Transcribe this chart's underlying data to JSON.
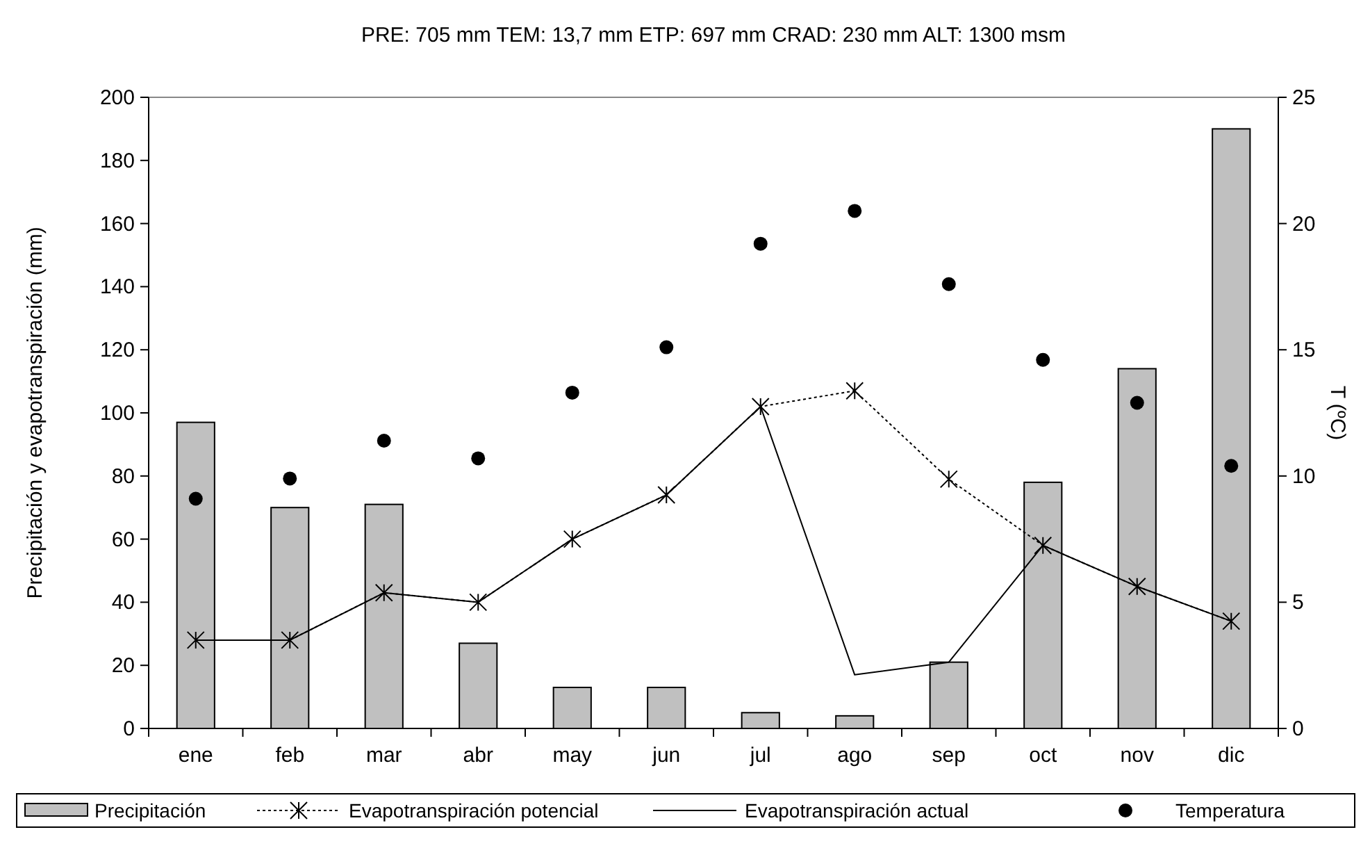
{
  "chart_data": {
    "type": "bar",
    "title": "PRE: 705 mm  TEM: 13,7 mm  ETP: 697 mm  CRAD: 230 mm  ALT: 1300 msm",
    "ylabel": "Precipitación y evapotranspiración (mm)",
    "y2label": "T (ºC)",
    "categories": [
      "ene",
      "feb",
      "mar",
      "abr",
      "may",
      "jun",
      "jul",
      "ago",
      "sep",
      "oct",
      "nov",
      "dic"
    ],
    "series": [
      {
        "name": "Precipitación",
        "color": "#c0c0c0",
        "values": [
          97,
          70,
          71,
          27,
          13,
          13,
          5,
          4,
          21,
          78,
          114,
          190
        ]
      },
      {
        "name": "Evapotranspiración potencial",
        "type": "line",
        "color": "#000000",
        "line_style": "dotted",
        "marker": "cross",
        "values": [
          28,
          28,
          43,
          40,
          60,
          74,
          102,
          107,
          79,
          58,
          45,
          34
        ]
      },
      {
        "name": "Evapotranspiración actual",
        "type": "line",
        "color": "#000000",
        "line_style": "solid",
        "marker": "none",
        "values": [
          28,
          28,
          43,
          40,
          60,
          74,
          102,
          17,
          21,
          58,
          45,
          34
        ]
      },
      {
        "name": "Temperatura",
        "type": "scatter",
        "axis": "y2",
        "color": "#000000",
        "marker": "circle",
        "values": [
          9.1,
          9.9,
          11.4,
          10.7,
          13.3,
          15.1,
          19.2,
          20.5,
          17.6,
          14.6,
          12.9,
          10.4
        ]
      }
    ],
    "ylim": [
      0,
      200
    ],
    "yticks": [
      0,
      20,
      40,
      60,
      80,
      100,
      120,
      140,
      160,
      180,
      200
    ],
    "y2lim": [
      0,
      25
    ],
    "y2ticks": [
      0,
      5,
      10,
      15,
      20,
      25
    ],
    "grid": false,
    "legend": "bottom"
  }
}
